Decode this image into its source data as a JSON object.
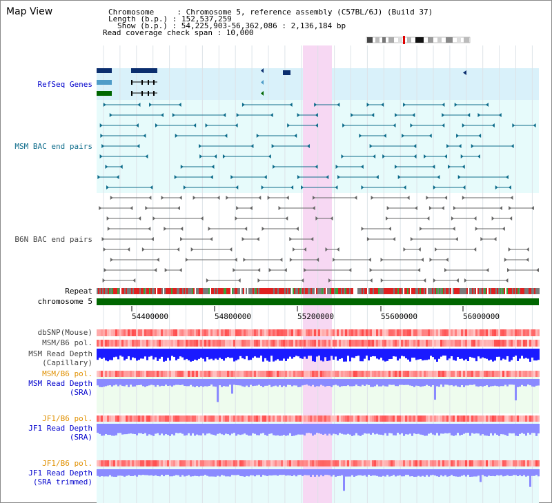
{
  "page_title": "Map View",
  "info": {
    "chromosome_line": "Chromosome     : Chromosome 5, reference assembly (C57BL/6J) (Build 37)",
    "length_line": "Length (b.p.) : 152,537,259",
    "show_line": "Show (b.p.) : 54,225,903-56,362,086 : 2,136,184 bp",
    "coverage_line": "Read coverage check span : 10,000"
  },
  "tracks": {
    "refseq": "RefSeq Genes",
    "msm_bac": "MSM BAC end pairs",
    "b6n_bac": "B6N BAC end pairs",
    "repeat": "Repeat",
    "chromosome": "chromosome 5",
    "dbsnp": "dbSNP(Mouse)",
    "msm_b6_pol": "MSM/B6 pol.",
    "msm_depth_cap_1": "MSM Read Depth",
    "msm_depth_cap_2": "(Capillary)",
    "msm_b6_pol_2": "MSM/B6 pol.",
    "msm_depth_sra_1": "MSM Read Depth",
    "msm_depth_sra_2": "(SRA)",
    "jf1_b6_pol": "JF1/B6 pol.",
    "jf1_depth_sra_1": "JF1 Read Depth",
    "jf1_depth_sra_2": "(SRA)",
    "jf1_b6_pol_2": "JF1/B6 pol.",
    "jf1_depth_trim_1": "JF1 Read Depth",
    "jf1_depth_trim_2": "(SRA trimmed)"
  },
  "axis_ticks": [
    "54400000",
    "54800000",
    "55200000",
    "55600000",
    "56000000"
  ],
  "colors": {
    "refseq_bg": "#d9f1fa",
    "bac_bg": "#e7fbfb",
    "highlight": "#f7d8f3",
    "chromosome_bar": "#006600",
    "msm_depth": "#1a1aff",
    "sra_depth": "#8a8aff",
    "pol": "#ff6666",
    "msm_line": "#0c6b8a",
    "b6n_line": "#666666"
  }
}
